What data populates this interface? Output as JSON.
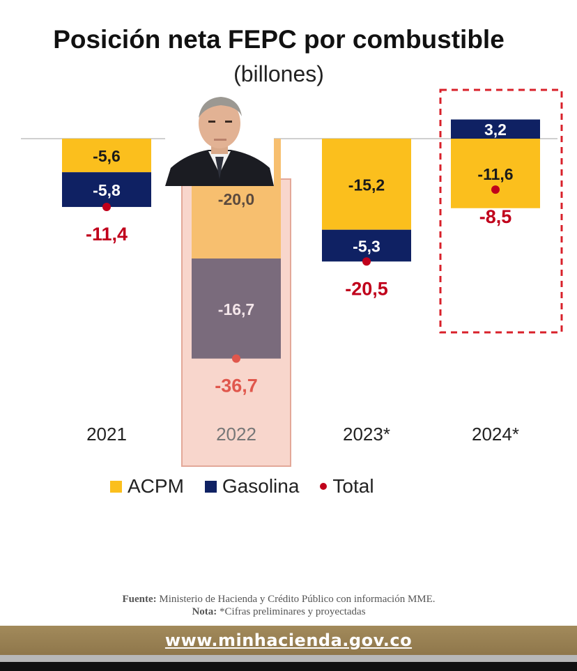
{
  "chart_data": {
    "type": "bar",
    "stacked": true,
    "title": "Posición neta FEPC por combustible",
    "subtitle": "(billones)",
    "categories": [
      "2021",
      "2022",
      "2023*",
      "2024*"
    ],
    "series": [
      {
        "name": "ACPM",
        "values": [
          -5.6,
          -20.0,
          -15.2,
          -11.6
        ],
        "labels": [
          "-5,6",
          "-20,0",
          "-15,2",
          "-11,6"
        ],
        "color": "#fbbf1d"
      },
      {
        "name": "Gasolina",
        "values": [
          -5.8,
          -16.7,
          -5.3,
          3.2
        ],
        "labels": [
          "-5,8",
          "-16,7",
          "-5,3",
          "3,2"
        ],
        "color": "#0f2163"
      },
      {
        "name": "Total",
        "values": [
          -11.4,
          -36.7,
          -20.5,
          -8.5
        ],
        "labels": [
          "-11,4",
          "-36,7",
          "-20,5",
          "-8,5"
        ],
        "color": "#c0001b"
      }
    ],
    "highlight_category": "2022",
    "projected_box_category": "2024*",
    "grid": false,
    "legend_position": "bottom"
  },
  "legend": {
    "acpm": "ACPM",
    "gasolina": "Gasolina",
    "total": "Total"
  },
  "source": {
    "fuente_label": "Fuente:",
    "fuente_text": "Ministerio de Hacienda y Crédito Público con información MME.",
    "nota_label": "Nota:",
    "nota_text": "*Cifras preliminares y proyectadas"
  },
  "footer": {
    "url": "www.minhacienda.gov.co"
  },
  "colors": {
    "acpm": "#fbbf1d",
    "gasolina": "#0f2163",
    "total": "#c0001b",
    "highlight_fill": "#f8d6cc",
    "highlight_border": "#e3a898",
    "dashed_box": "#d8202a"
  }
}
